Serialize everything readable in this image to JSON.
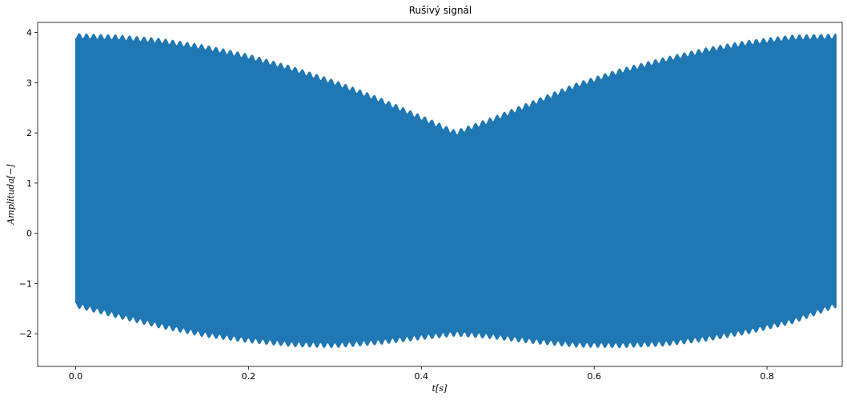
{
  "chart_data": {
    "type": "line",
    "title": "Rušivý signál",
    "xlabel": "t[s]",
    "ylabel": "Amplituda[−]",
    "xlim": [
      -0.044,
      0.887
    ],
    "ylim": [
      -2.65,
      4.2
    ],
    "xticks": [
      {
        "value": 0.0,
        "label": "0.0"
      },
      {
        "value": 0.2,
        "label": "0.2"
      },
      {
        "value": 0.4,
        "label": "0.4"
      },
      {
        "value": 0.6,
        "label": "0.6"
      },
      {
        "value": 0.8,
        "label": "0.8"
      }
    ],
    "yticks": [
      {
        "value": -2,
        "label": "−2"
      },
      {
        "value": -1,
        "label": "−1"
      },
      {
        "value": 0,
        "label": "0"
      },
      {
        "value": 1,
        "label": "1"
      },
      {
        "value": 2,
        "label": "2"
      },
      {
        "value": 3,
        "label": "3"
      },
      {
        "value": 4,
        "label": "4"
      }
    ],
    "grid": false,
    "legend": "none",
    "series": [
      {
        "color": "#1f77b4",
        "x": [
          0.0,
          0.05,
          0.1,
          0.15,
          0.2,
          0.25,
          0.3,
          0.35,
          0.4,
          0.44,
          0.48,
          0.53,
          0.58,
          0.63,
          0.68,
          0.73,
          0.78,
          0.83,
          0.88
        ],
        "upper": [
          3.98,
          3.95,
          3.88,
          3.75,
          3.57,
          3.33,
          3.05,
          2.72,
          2.35,
          2.05,
          2.3,
          2.65,
          3.0,
          3.28,
          3.5,
          3.7,
          3.85,
          3.95,
          3.97
        ],
        "lower": [
          -1.48,
          -1.7,
          -1.9,
          -2.07,
          -2.18,
          -2.26,
          -2.28,
          -2.22,
          -2.12,
          -2.05,
          -2.1,
          -2.2,
          -2.27,
          -2.28,
          -2.25,
          -2.15,
          -2.0,
          -1.8,
          -1.48
        ]
      }
    ]
  }
}
